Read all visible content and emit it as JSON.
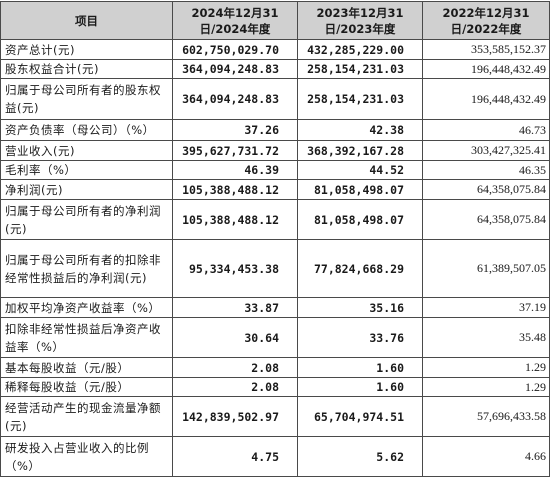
{
  "header": {
    "item": "项目",
    "col_2024": "2024年12月31日/2024年度",
    "col_2023": "2023年12月31日/2023年度",
    "col_2022": "2022年12月31日/2022年度"
  },
  "rows": [
    {
      "label": "资产总计(元)",
      "v2024": "602,750,029.70",
      "v2023": "432,285,229.00",
      "v2022": "353,585,152.37"
    },
    {
      "label": "股东权益合计(元)",
      "v2024": "364,094,248.83",
      "v2023": "258,154,231.03",
      "v2022": "196,448,432.49"
    },
    {
      "label": "归属于母公司所有者的股东权益(元)",
      "v2024": "364,094,248.83",
      "v2023": "258,154,231.03",
      "v2022": "196,448,432.49"
    },
    {
      "label": "资产负债率（母公司）（%）",
      "v2024": "37.26",
      "v2023": "42.38",
      "v2022": "46.73"
    },
    {
      "label": "营业收入(元)",
      "v2024": "395,627,731.72",
      "v2023": "368,392,167.28",
      "v2022": "303,427,325.41"
    },
    {
      "label": "毛利率（%）",
      "v2024": "46.39",
      "v2023": "44.52",
      "v2022": "46.35"
    },
    {
      "label": "净利润(元)",
      "v2024": "105,388,488.12",
      "v2023": "81,058,498.07",
      "v2022": "64,358,075.84"
    },
    {
      "label": "归属于母公司所有者的净利润(元)",
      "v2024": "105,388,488.12",
      "v2023": "81,058,498.07",
      "v2022": "64,358,075.84"
    },
    {
      "label": "归属于母公司所有者的扣除非经常性损益后的净利润(元)",
      "v2024": "95,334,453.38",
      "v2023": "77,824,668.29",
      "v2022": "61,389,507.05"
    },
    {
      "label": "加权平均净资产收益率（%）",
      "v2024": "33.87",
      "v2023": "35.16",
      "v2022": "37.19"
    },
    {
      "label": "扣除非经常性损益后净资产收益率（%）",
      "v2024": "30.64",
      "v2023": "33.76",
      "v2022": "35.48"
    },
    {
      "label": "基本每股收益（元/股）",
      "v2024": "2.08",
      "v2023": "1.60",
      "v2022": "1.29"
    },
    {
      "label": "稀释每股收益（元/股）",
      "v2024": "2.08",
      "v2023": "1.60",
      "v2022": "1.29"
    },
    {
      "label": "经营活动产生的现金流量净额(元)",
      "v2024": "142,839,502.97",
      "v2023": "65,704,974.51",
      "v2022": "57,696,433.58"
    },
    {
      "label": "研发投入占营业收入的比例（%）",
      "v2024": "4.75",
      "v2023": "5.62",
      "v2022": "4.66"
    }
  ]
}
